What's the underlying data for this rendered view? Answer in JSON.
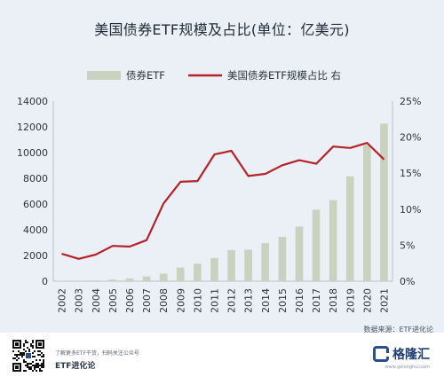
{
  "title": "美国债券ETF规模及占比(单位：亿美元)",
  "source": "数据来源：ETF进化论",
  "footer": {
    "note": "了解更多ETF干货，扫码关注公众号",
    "brand": "ETF进化论",
    "logo_text": "格隆汇",
    "logo_sub": "www.gelonghui.com"
  },
  "colors": {
    "bar": "#c9d1bf",
    "line": "#b5222a",
    "background": "#eaf0f5"
  },
  "chart_data": {
    "type": "bar+line",
    "title": "美国债券ETF规模及占比(单位：亿美元)",
    "categories": [
      "2002",
      "2003",
      "2004",
      "2005",
      "2006",
      "2007",
      "2008",
      "2009",
      "2010",
      "2011",
      "2012",
      "2013",
      "2014",
      "2015",
      "2016",
      "2017",
      "2018",
      "2019",
      "2020",
      "2021"
    ],
    "series": [
      {
        "name": "债券ETF",
        "type": "bar",
        "axis": "left",
        "values": [
          30,
          40,
          60,
          130,
          220,
          370,
          580,
          1060,
          1360,
          1800,
          2420,
          2450,
          2950,
          3450,
          4250,
          5560,
          6300,
          8150,
          10600,
          12250
        ]
      },
      {
        "name": "美国债券ETF规模占比 右",
        "type": "line",
        "axis": "right",
        "values": [
          3.8,
          3.1,
          3.7,
          4.9,
          4.8,
          5.7,
          10.8,
          13.8,
          13.9,
          17.6,
          18.1,
          14.6,
          14.9,
          16.1,
          16.8,
          16.3,
          18.7,
          18.5,
          19.2,
          16.9
        ]
      }
    ],
    "y_left": {
      "min": 0,
      "max": 14000,
      "ticks": [
        "0",
        "2000",
        "4000",
        "6000",
        "8000",
        "10000",
        "12000",
        "14000"
      ]
    },
    "y_right": {
      "min": 0,
      "max": 25,
      "ticks": [
        "0%",
        "5%",
        "10%",
        "15%",
        "20%",
        "25%"
      ]
    },
    "legend_position": "top",
    "grid": false
  }
}
